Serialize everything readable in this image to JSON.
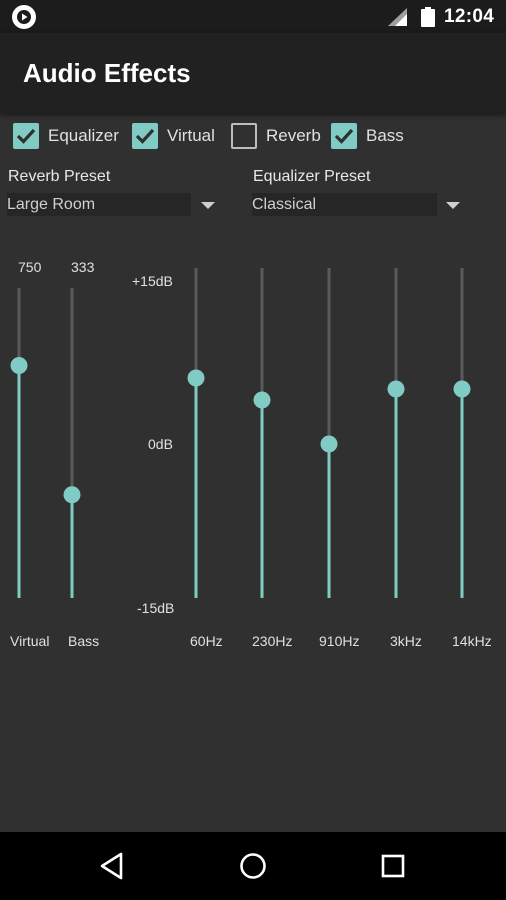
{
  "status_bar": {
    "time": "12:04",
    "icons": [
      "app-notification-icon",
      "signal-icon",
      "battery-icon"
    ]
  },
  "app_bar": {
    "title": "Audio Effects"
  },
  "effects": [
    {
      "label": "Equalizer",
      "checked": true
    },
    {
      "label": "Virtual",
      "checked": true
    },
    {
      "label": "Reverb",
      "checked": false
    },
    {
      "label": "Bass",
      "checked": true
    }
  ],
  "reverb_preset": {
    "title": "Reverb Preset",
    "value": "Large Room"
  },
  "equalizer_preset": {
    "title": "Equalizer Preset",
    "value": "Classical"
  },
  "level_sliders": [
    {
      "label": "Virtual",
      "value": "750",
      "level_fraction": 0.75
    },
    {
      "label": "Bass",
      "value": "333",
      "level_fraction": 0.333
    }
  ],
  "db_scale": {
    "top": "+15dB",
    "middle": "0dB",
    "bottom": "-15dB"
  },
  "eq_bands": [
    {
      "label": "60Hz",
      "db": 5
    },
    {
      "label": "230Hz",
      "db": 3
    },
    {
      "label": "910Hz",
      "db": -1
    },
    {
      "label": "3kHz",
      "db": 4
    },
    {
      "label": "14kHz",
      "db": 4
    }
  ],
  "colors": {
    "accent": "#80cbc4",
    "track": "#5a5a5a",
    "background": "#303030",
    "app_bar": "#212121",
    "status_bar": "#1c1c1c",
    "nav_bar": "#000000"
  },
  "nav": {
    "icons": [
      "back-icon",
      "home-icon",
      "recents-icon"
    ]
  }
}
